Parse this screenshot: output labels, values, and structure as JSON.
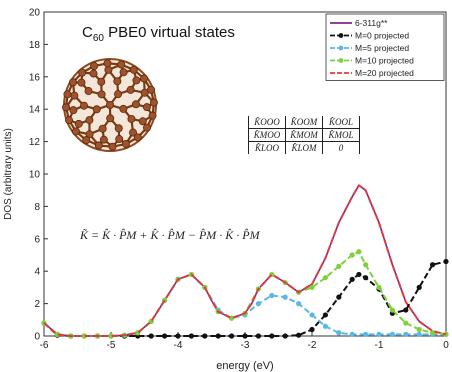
{
  "annotation": {
    "title_prefix": "C",
    "title_sub": "60",
    "title_suffix": " PBE0 virtual states",
    "formula": "K̃ = K̂ · P̂M + K̂ · P̂M − P̂M · K̂ · P̂M",
    "matrix": [
      [
        "K̂OOO",
        "K̂OOM",
        "K̂OOL"
      ],
      [
        "K̂MOO",
        "K̂MOM",
        "K̂MOL"
      ],
      [
        "K̂LOO",
        "K̂LOM",
        "0"
      ]
    ]
  },
  "chart_data": {
    "type": "line",
    "xlabel": "energy (eV)",
    "ylabel": "DOS (arbitrary units)",
    "xlim": [
      -6,
      0
    ],
    "ylim": [
      0,
      20
    ],
    "xticks": [
      -6,
      -5,
      -4,
      -3,
      -2,
      -1,
      0
    ],
    "yticks": [
      0,
      2,
      4,
      6,
      8,
      10,
      12,
      14,
      16,
      18,
      20
    ],
    "grid": false,
    "legend_position": "top-right",
    "series": [
      {
        "name": "6-311g**",
        "color": "#7a2a8c",
        "style": "solid",
        "marker": "none",
        "x": [
          -6.0,
          -5.8,
          -5.6,
          -5.4,
          -5.2,
          -5.0,
          -4.8,
          -4.6,
          -4.4,
          -4.2,
          -4.0,
          -3.8,
          -3.6,
          -3.5,
          -3.4,
          -3.2,
          -3.0,
          -2.9,
          -2.8,
          -2.6,
          -2.4,
          -2.2,
          -2.0,
          -1.8,
          -1.6,
          -1.4,
          -1.3,
          -1.2,
          -1.0,
          -0.8,
          -0.6,
          -0.4,
          -0.2,
          0.0
        ],
        "y": [
          0.8,
          0.1,
          0.0,
          0.0,
          0.0,
          0.0,
          0.05,
          0.2,
          0.9,
          2.2,
          3.5,
          3.8,
          3.0,
          2.2,
          1.5,
          1.1,
          1.4,
          2.0,
          2.9,
          3.8,
          3.3,
          2.7,
          3.2,
          4.8,
          7.0,
          8.6,
          9.3,
          9.0,
          7.0,
          4.4,
          2.1,
          0.9,
          0.3,
          0.1
        ]
      },
      {
        "name": "M=0 projected",
        "color": "#111111",
        "style": "dashed",
        "marker": "circle",
        "x": [
          -6.0,
          -5.8,
          -5.6,
          -5.4,
          -5.2,
          -5.0,
          -4.8,
          -4.6,
          -4.4,
          -4.2,
          -4.0,
          -3.8,
          -3.6,
          -3.4,
          -3.2,
          -3.0,
          -2.8,
          -2.6,
          -2.4,
          -2.2,
          -2.0,
          -1.8,
          -1.6,
          -1.4,
          -1.3,
          -1.2,
          -1.0,
          -0.8,
          -0.6,
          -0.4,
          -0.2,
          0.0
        ],
        "y": [
          0.8,
          0.05,
          0.0,
          0.0,
          0.0,
          0.0,
          0.0,
          0.0,
          0.0,
          0.0,
          0.0,
          0.0,
          0.0,
          0.0,
          0.0,
          0.0,
          0.0,
          0.0,
          0.0,
          0.05,
          0.4,
          1.3,
          2.4,
          3.5,
          3.8,
          3.6,
          2.9,
          1.4,
          1.6,
          3.0,
          4.4,
          4.6
        ]
      },
      {
        "name": "M=5 projected",
        "color": "#5bb8e0",
        "style": "dashed",
        "marker": "circle",
        "x": [
          -6.0,
          -5.8,
          -5.6,
          -5.4,
          -5.2,
          -5.0,
          -4.8,
          -4.6,
          -4.4,
          -4.2,
          -4.0,
          -3.8,
          -3.6,
          -3.4,
          -3.2,
          -3.0,
          -2.8,
          -2.6,
          -2.4,
          -2.2,
          -2.0,
          -1.8,
          -1.6,
          -1.4,
          -1.2,
          -1.0,
          -0.8,
          -0.6,
          -0.4,
          -0.2,
          0.0
        ],
        "y": [
          0.8,
          0.1,
          0.0,
          0.0,
          0.0,
          0.0,
          0.05,
          0.2,
          0.9,
          2.2,
          3.5,
          3.8,
          3.0,
          1.6,
          1.1,
          1.3,
          2.0,
          2.5,
          2.4,
          2.0,
          1.3,
          0.6,
          0.2,
          0.1,
          0.1,
          0.1,
          0.1,
          0.1,
          0.1,
          0.1,
          0.1
        ]
      },
      {
        "name": "M=10 projected",
        "color": "#7fd13b",
        "style": "dashed",
        "marker": "circle",
        "x": [
          -6.0,
          -5.8,
          -5.6,
          -5.4,
          -5.2,
          -5.0,
          -4.8,
          -4.6,
          -4.4,
          -4.2,
          -4.0,
          -3.8,
          -3.6,
          -3.4,
          -3.2,
          -3.0,
          -2.8,
          -2.6,
          -2.4,
          -2.2,
          -2.0,
          -1.8,
          -1.6,
          -1.4,
          -1.3,
          -1.2,
          -1.0,
          -0.8,
          -0.6,
          -0.4,
          -0.2,
          0.0
        ],
        "y": [
          0.8,
          0.1,
          0.0,
          0.0,
          0.0,
          0.0,
          0.05,
          0.2,
          0.9,
          2.2,
          3.5,
          3.8,
          3.0,
          1.5,
          1.1,
          1.4,
          2.9,
          3.8,
          3.3,
          2.7,
          3.0,
          3.6,
          4.3,
          5.0,
          5.2,
          4.4,
          3.0,
          1.6,
          0.8,
          0.4,
          0.2,
          0.1
        ]
      },
      {
        "name": "M=20 projected",
        "color": "#e23a3a",
        "style": "dashed",
        "marker": "none",
        "x": [
          -6.0,
          -5.8,
          -5.6,
          -5.4,
          -5.2,
          -5.0,
          -4.8,
          -4.6,
          -4.4,
          -4.2,
          -4.0,
          -3.8,
          -3.6,
          -3.5,
          -3.4,
          -3.2,
          -3.0,
          -2.9,
          -2.8,
          -2.6,
          -2.4,
          -2.2,
          -2.0,
          -1.8,
          -1.6,
          -1.4,
          -1.3,
          -1.2,
          -1.0,
          -0.8,
          -0.6,
          -0.4,
          -0.2,
          0.0
        ],
        "y": [
          0.8,
          0.1,
          0.0,
          0.0,
          0.0,
          0.0,
          0.05,
          0.2,
          0.9,
          2.2,
          3.5,
          3.8,
          3.0,
          2.2,
          1.5,
          1.1,
          1.4,
          2.0,
          2.9,
          3.8,
          3.3,
          2.7,
          3.2,
          4.8,
          7.0,
          8.6,
          9.3,
          9.0,
          7.0,
          4.4,
          2.1,
          0.9,
          0.3,
          0.1
        ]
      }
    ]
  }
}
